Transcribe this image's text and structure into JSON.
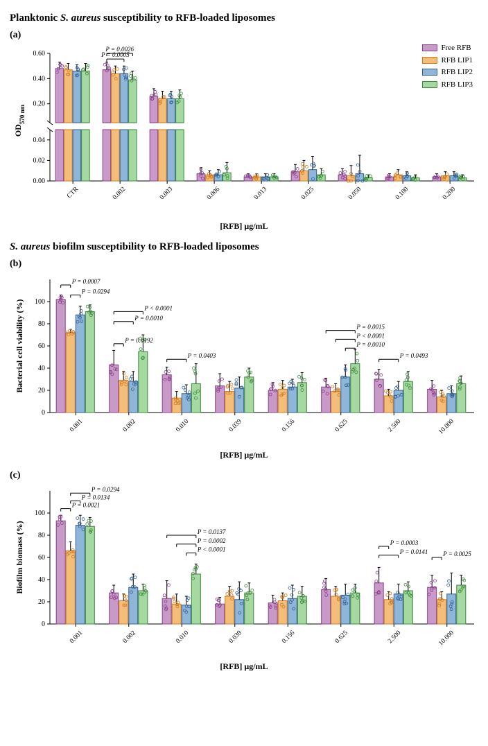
{
  "title_a": "Planktonic <i>S. aureus</i> susceptibility to RFB-loaded liposomes",
  "title_b": "<i>S. aureus</i> biofilm susceptibility to RFB-loaded liposomes",
  "xlabel": "[RFB]  μg/mL",
  "ylabel_a": "OD",
  "ysub_a": "570 nm",
  "ylabel_b": "Bacterial cell viability (%)",
  "ylabel_c": "Biofilm biomass (%)",
  "series": [
    {
      "name": "Free RFB",
      "color": "#c79ac7",
      "stroke": "#8a3f8c"
    },
    {
      "name": "RFB LIP1",
      "color": "#f3bd7a",
      "stroke": "#cf7a1f"
    },
    {
      "name": "RFB LIP2",
      "color": "#8fb6d9",
      "stroke": "#2f5f93"
    },
    {
      "name": "RFB LIP3",
      "color": "#a6d8a1",
      "stroke": "#3a8a3a"
    }
  ],
  "panel_a": {
    "xcats": [
      "CTR",
      "0.002",
      "0.003",
      "0.006",
      "0.013",
      "0.025",
      "0.050",
      "0.100",
      "0.200"
    ],
    "break": {
      "low_max": 0.05,
      "high_min": 0.05,
      "high_max": 0.6
    },
    "yticks_high": [
      "0.20",
      "0.40",
      "0.60"
    ],
    "yticks_low": [
      "0.00",
      "0.02",
      "0.04"
    ],
    "groups": [
      {
        "v": [
          0.48,
          0.47,
          0.46,
          0.46
        ],
        "e": [
          0.05,
          0.05,
          0.05,
          0.06
        ]
      },
      {
        "v": [
          0.47,
          0.44,
          0.44,
          0.39
        ],
        "e": [
          0.06,
          0.06,
          0.06,
          0.07
        ]
      },
      {
        "v": [
          0.26,
          0.24,
          0.24,
          0.24
        ],
        "e": [
          0.06,
          0.06,
          0.06,
          0.07
        ]
      },
      {
        "v": [
          0.007,
          0.006,
          0.006,
          0.008
        ],
        "e": [
          0.006,
          0.004,
          0.005,
          0.01
        ]
      },
      {
        "v": [
          0.004,
          0.004,
          0.004,
          0.004
        ],
        "e": [
          0.003,
          0.003,
          0.003,
          0.003
        ]
      },
      {
        "v": [
          0.009,
          0.01,
          0.011,
          0.006
        ],
        "e": [
          0.007,
          0.01,
          0.013,
          0.006
        ]
      },
      {
        "v": [
          0.006,
          0.005,
          0.007,
          0.003
        ],
        "e": [
          0.006,
          0.01,
          0.018,
          0.003
        ]
      },
      {
        "v": [
          0.004,
          0.006,
          0.005,
          0.003
        ],
        "e": [
          0.003,
          0.005,
          0.004,
          0.003
        ]
      },
      {
        "v": [
          0.004,
          0.005,
          0.005,
          0.003
        ],
        "e": [
          0.003,
          0.004,
          0.004,
          0.003
        ]
      }
    ],
    "pvalues": [
      {
        "group": 1,
        "from": 0,
        "to": 3,
        "text": "P = 0.0026",
        "y": 0.6
      },
      {
        "group": 1,
        "from": 0,
        "to": 2,
        "text": "P = 0.0005",
        "y": 0.555
      }
    ]
  },
  "panel_b": {
    "xcats": [
      "0.001",
      "0.002",
      "0.010",
      "0.039",
      "0.156",
      "0.625",
      "2.500",
      "10.000"
    ],
    "ymax": 120,
    "yticks": [
      0,
      20,
      40,
      60,
      80,
      100
    ],
    "groups": [
      {
        "v": [
          102,
          72,
          88,
          91
        ],
        "e": [
          4,
          3,
          8,
          6
        ]
      },
      {
        "v": [
          43,
          29,
          28,
          55
        ],
        "e": [
          13,
          8,
          9,
          15
        ]
      },
      {
        "v": [
          34,
          13,
          17,
          26
        ],
        "e": [
          7,
          6,
          8,
          18
        ]
      },
      {
        "v": [
          24,
          19,
          22,
          32
        ],
        "e": [
          11,
          9,
          10,
          8
        ]
      },
      {
        "v": [
          20,
          21,
          23,
          27
        ],
        "e": [
          7,
          8,
          7,
          9
        ]
      },
      {
        "v": [
          23,
          19,
          32,
          44
        ],
        "e": [
          8,
          7,
          11,
          13
        ]
      },
      {
        "v": [
          30,
          15,
          20,
          28
        ],
        "e": [
          9,
          6,
          8,
          9
        ]
      },
      {
        "v": [
          21,
          14,
          17,
          26
        ],
        "e": [
          8,
          6,
          7,
          7
        ]
      }
    ],
    "pvalues": [
      {
        "group": 0,
        "from": 0,
        "to": 1,
        "text": "P = 0.0007",
        "y": 115
      },
      {
        "group": 0,
        "from": 1,
        "to": 2,
        "text": "P = 0.0294",
        "y": 106
      },
      {
        "group": 1,
        "from": 0,
        "to": 1,
        "text": "P = 0.0192",
        "y": 62
      },
      {
        "group": 1,
        "from": 0,
        "to": 2,
        "text": "P = 0.0010",
        "y": 82
      },
      {
        "group": 1,
        "from": 0,
        "to": 3,
        "text": "P < 0.0001",
        "y": 91
      },
      {
        "group": 2,
        "from": 0,
        "to": 2,
        "text": "P = 0.0403",
        "y": 48
      },
      {
        "group": 5,
        "from": 0,
        "to": 3,
        "text": "P = 0.0015",
        "y": 74
      },
      {
        "group": 5,
        "from": 1,
        "to": 3,
        "text": "P < 0.0001",
        "y": 66
      },
      {
        "group": 5,
        "from": 2,
        "to": 3,
        "text": "P = 0.0010",
        "y": 58
      },
      {
        "group": 6,
        "from": 0,
        "to": 2,
        "text": "P = 0.0493",
        "y": 48
      }
    ]
  },
  "panel_c": {
    "xcats": [
      "0.001",
      "0.002",
      "0.010",
      "0.039",
      "0.156",
      "0.625",
      "2.500",
      "10.000"
    ],
    "ymax": 120,
    "yticks": [
      0,
      20,
      40,
      60,
      80,
      100
    ],
    "groups": [
      {
        "v": [
          93,
          66,
          89,
          88
        ],
        "e": [
          5,
          8,
          9,
          8
        ]
      },
      {
        "v": [
          28,
          21,
          33,
          30
        ],
        "e": [
          7,
          6,
          12,
          6
        ]
      },
      {
        "v": [
          23,
          18,
          17,
          45
        ],
        "e": [
          16,
          9,
          8,
          9
        ]
      },
      {
        "v": [
          18,
          25,
          22,
          28
        ],
        "e": [
          6,
          9,
          16,
          9
        ]
      },
      {
        "v": [
          19,
          21,
          23,
          25
        ],
        "e": [
          7,
          7,
          12,
          9
        ]
      },
      {
        "v": [
          31,
          25,
          26,
          28
        ],
        "e": [
          10,
          9,
          10,
          8
        ]
      },
      {
        "v": [
          37,
          22,
          27,
          30
        ],
        "e": [
          14,
          7,
          9,
          8
        ]
      },
      {
        "v": [
          33,
          22,
          27,
          35
        ],
        "e": [
          11,
          7,
          19,
          9
        ]
      }
    ],
    "pvalues": [
      {
        "group": 0,
        "from": 0,
        "to": 1,
        "text": "P = 0.0021",
        "y": 104
      },
      {
        "group": 0,
        "from": 1,
        "to": 2,
        "text": "P = 0.0134",
        "y": 111
      },
      {
        "group": 0,
        "from": 1,
        "to": 3,
        "text": "P = 0.0294",
        "y": 118
      },
      {
        "group": 2,
        "from": 0,
        "to": 3,
        "text": "P = 0.0137",
        "y": 80
      },
      {
        "group": 2,
        "from": 1,
        "to": 3,
        "text": "P = 0.0002",
        "y": 72
      },
      {
        "group": 2,
        "from": 2,
        "to": 3,
        "text": "P < 0.0001",
        "y": 64
      },
      {
        "group": 6,
        "from": 0,
        "to": 1,
        "text": "P = 0.0003",
        "y": 70
      },
      {
        "group": 6,
        "from": 0,
        "to": 2,
        "text": "P = 0.0141",
        "y": 62
      },
      {
        "group": 7,
        "from": 0,
        "to": 1,
        "text": "P = 0.0025",
        "y": 60
      }
    ]
  }
}
